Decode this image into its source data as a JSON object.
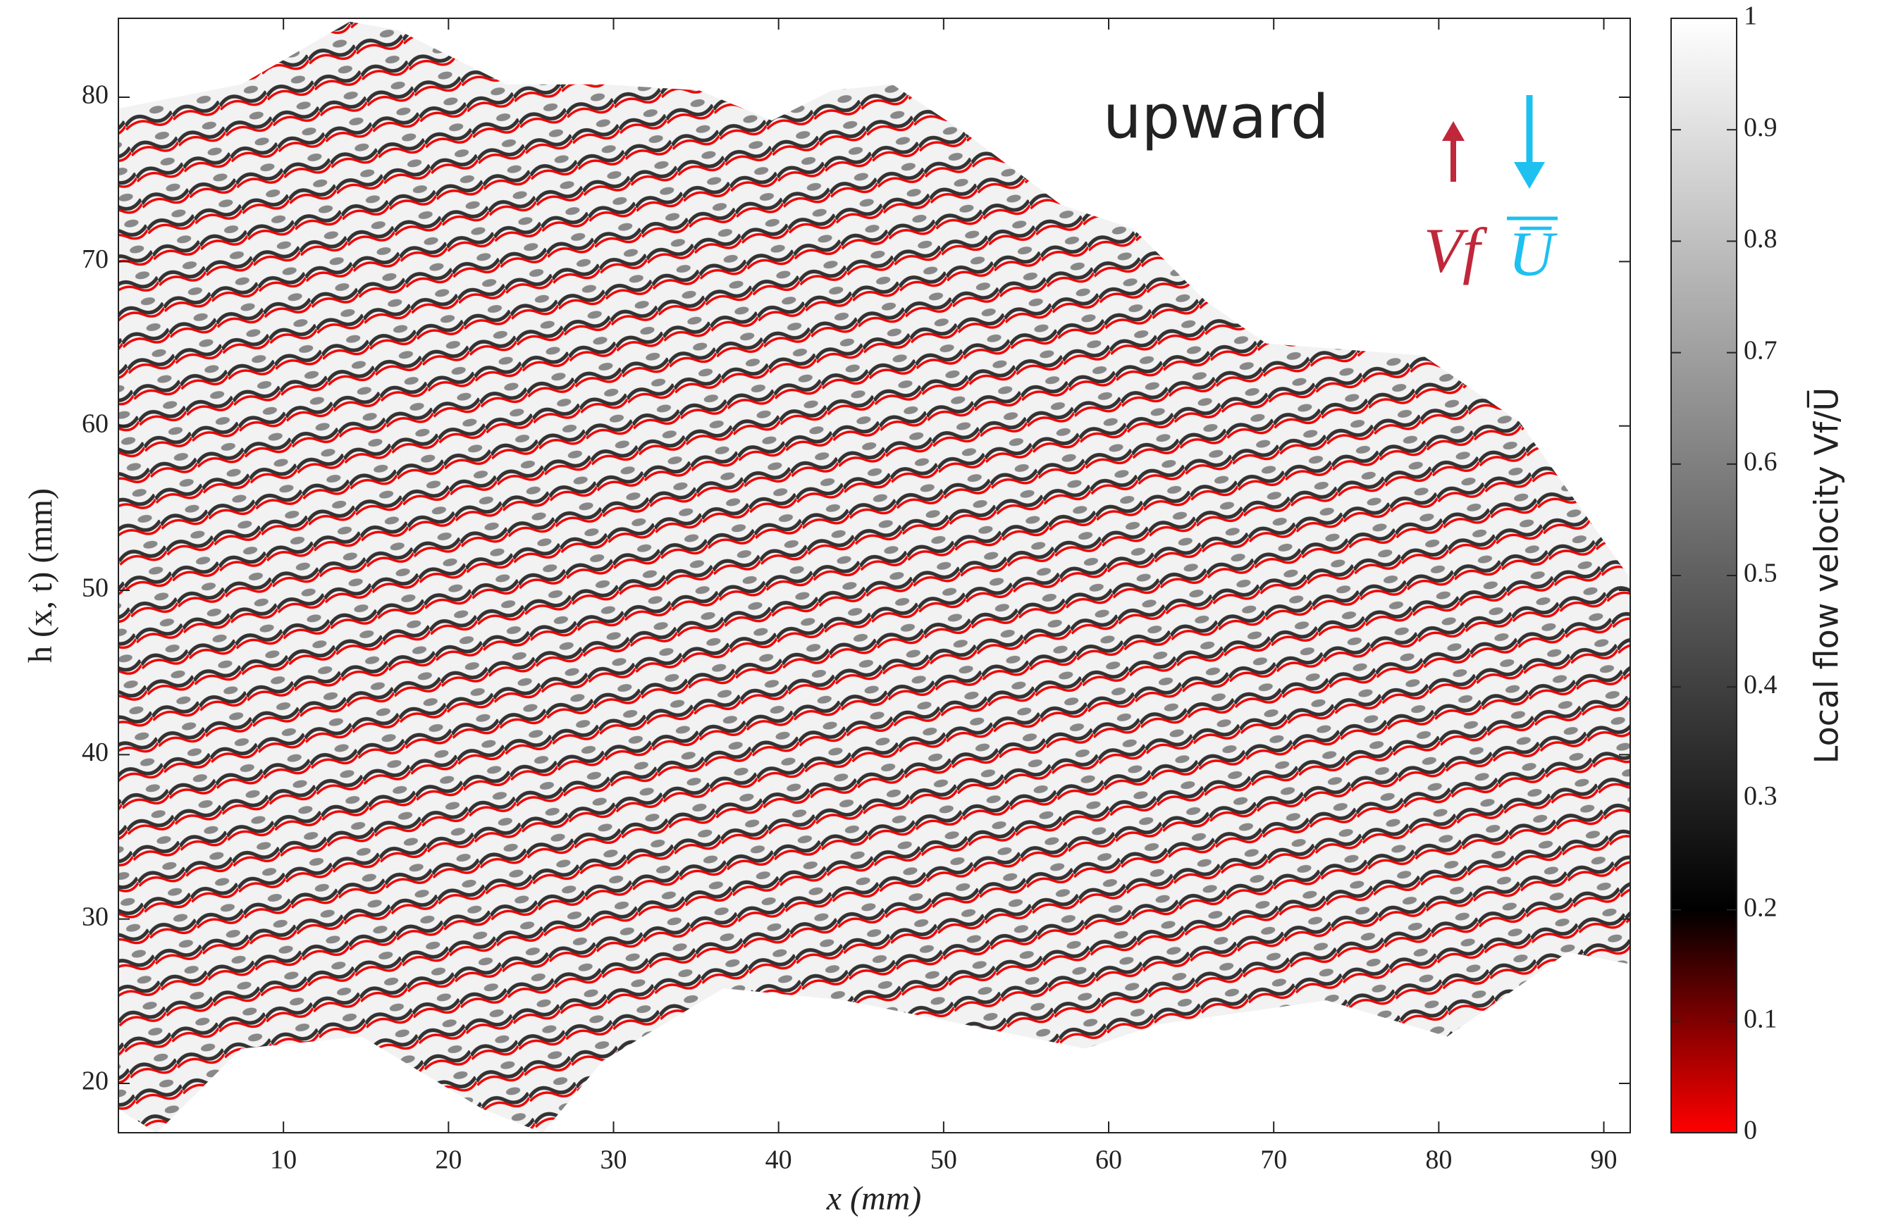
{
  "chart_data": {
    "type": "heatmap",
    "xlabel": "x (mm)",
    "ylabel": "h (x, t) (mm)",
    "xlim": [
      0,
      91.6
    ],
    "xticks": [
      10,
      20,
      30,
      40,
      50,
      60,
      70,
      80,
      90
    ],
    "ylim": [
      17,
      84.8
    ],
    "yticks": [
      20,
      30,
      40,
      50,
      60,
      70,
      80
    ],
    "colorbar": {
      "label": "Local flow velocity Vf/U̅",
      "lim": [
        0,
        1
      ],
      "ticks": [
        0,
        0.1,
        0.2,
        0.3,
        0.4,
        0.5,
        0.6,
        0.7,
        0.8,
        0.9,
        1
      ],
      "colormap": [
        {
          "value": 0,
          "color": "#ff0000"
        },
        {
          "value": 0.2,
          "color": "#000000"
        },
        {
          "value": 1,
          "color": "#ffffff"
        }
      ]
    },
    "annotations": {
      "direction": "upward",
      "front_velocity": "Vf",
      "mean_velocity": "U̅",
      "front_color": "#c0273a",
      "mean_color": "#1ec0f0"
    }
  }
}
